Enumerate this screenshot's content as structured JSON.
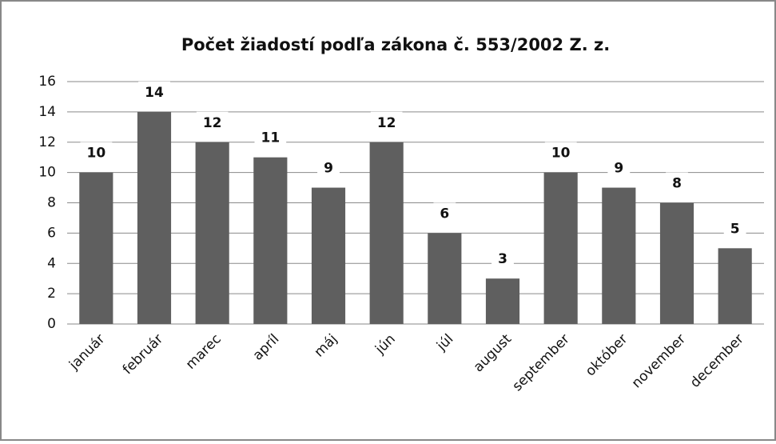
{
  "chart_data": {
    "type": "bar",
    "title": "Počet žiadostí podľa zákona č. 553/2002 Z. z.",
    "categories": [
      "január",
      "február",
      "marec",
      "apríl",
      "máj",
      "jún",
      "júl",
      "august",
      "september",
      "október",
      "november",
      "december"
    ],
    "values": [
      10,
      14,
      12,
      11,
      9,
      12,
      6,
      3,
      10,
      9,
      8,
      5
    ],
    "color": "#5f5f5f",
    "ylim": [
      0,
      16
    ],
    "yticks": [
      0,
      2,
      4,
      6,
      8,
      10,
      12,
      14,
      16
    ],
    "grid": true
  }
}
